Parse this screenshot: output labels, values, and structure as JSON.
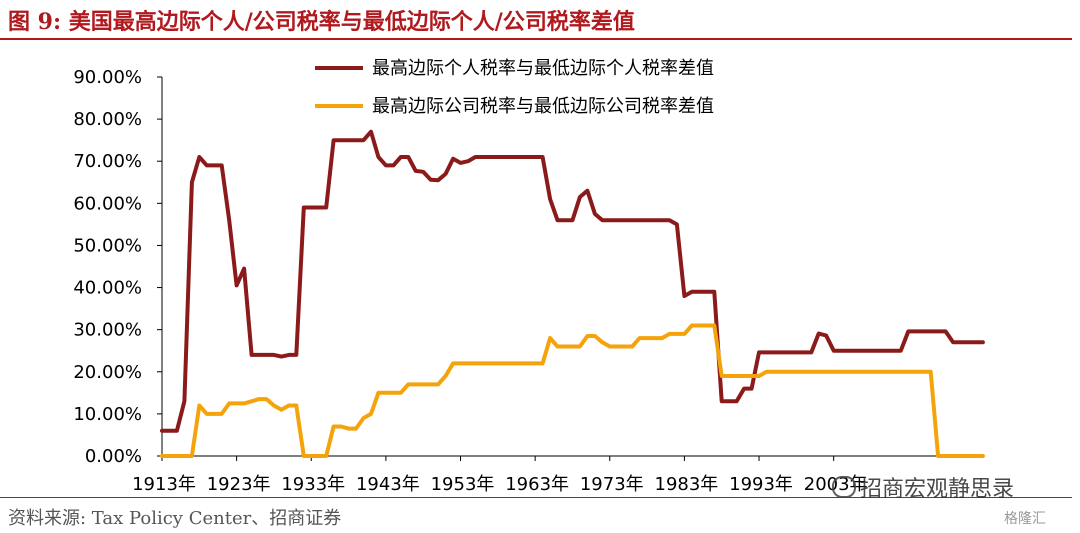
{
  "title": "图 9:  美国最高边际个人/公司税率与最低边际个人/公司税率差值",
  "source": "资料来源:  Tax Policy Center、招商证券",
  "watermark": "招商宏观静思录",
  "corner_logo": "格隆汇",
  "chart_data": {
    "type": "line",
    "title": "",
    "xlabel": "",
    "ylabel": "",
    "ylim": [
      0,
      90
    ],
    "xlim": [
      1913,
      2021
    ],
    "y_ticks": [
      "0.00%",
      "10.00%",
      "20.00%",
      "30.00%",
      "40.00%",
      "50.00%",
      "60.00%",
      "70.00%",
      "80.00%",
      "90.00%"
    ],
    "y_tick_values": [
      0,
      10,
      20,
      30,
      40,
      50,
      60,
      70,
      80,
      90
    ],
    "x_ticks": [
      "1913年",
      "1923年",
      "1933年",
      "1943年",
      "1953年",
      "1963年",
      "1973年",
      "1983年",
      "1993年",
      "2003年"
    ],
    "x_tick_values": [
      1913,
      1923,
      1933,
      1943,
      1953,
      1963,
      1973,
      1983,
      1993,
      2003
    ],
    "grid": false,
    "legend_position": "top-right",
    "series": [
      {
        "name": "最高边际个人税率与最低边际个人税率差值",
        "color": "#8b1a1a",
        "points": [
          [
            1913,
            6
          ],
          [
            1915,
            6
          ],
          [
            1916,
            13
          ],
          [
            1917,
            65
          ],
          [
            1918,
            71
          ],
          [
            1919,
            69
          ],
          [
            1921,
            69
          ],
          [
            1922,
            56
          ],
          [
            1923,
            40.5
          ],
          [
            1924,
            44.5
          ],
          [
            1925,
            24
          ],
          [
            1928,
            24
          ],
          [
            1929,
            23.6
          ],
          [
            1930,
            24
          ],
          [
            1931,
            24
          ],
          [
            1932,
            59
          ],
          [
            1935,
            59
          ],
          [
            1936,
            75
          ],
          [
            1940,
            75
          ],
          [
            1941,
            77
          ],
          [
            1942,
            71
          ],
          [
            1943,
            69
          ],
          [
            1944,
            69
          ],
          [
            1945,
            71
          ],
          [
            1946,
            71
          ],
          [
            1947,
            67.7
          ],
          [
            1948,
            67.5
          ],
          [
            1949,
            65.6
          ],
          [
            1950,
            65.5
          ],
          [
            1951,
            67
          ],
          [
            1952,
            70.6
          ],
          [
            1953,
            69.6
          ],
          [
            1954,
            70
          ],
          [
            1955,
            71
          ],
          [
            1964,
            71
          ],
          [
            1965,
            61
          ],
          [
            1966,
            56
          ],
          [
            1968,
            56
          ],
          [
            1969,
            61.5
          ],
          [
            1970,
            63
          ],
          [
            1971,
            57.5
          ],
          [
            1972,
            56
          ],
          [
            1981,
            56
          ],
          [
            1982,
            55
          ],
          [
            1983,
            38
          ],
          [
            1984,
            39
          ],
          [
            1987,
            39
          ],
          [
            1988,
            13
          ],
          [
            1990,
            13
          ],
          [
            1991,
            16
          ],
          [
            1992,
            16
          ],
          [
            1993,
            24.6
          ],
          [
            2000,
            24.6
          ],
          [
            2001,
            29.1
          ],
          [
            2002,
            28.6
          ],
          [
            2003,
            25
          ],
          [
            2012,
            25
          ],
          [
            2013,
            29.6
          ],
          [
            2018,
            29.6
          ],
          [
            2019,
            27
          ],
          [
            2023,
            27
          ]
        ]
      },
      {
        "name": "最高边际公司税率与最低边际公司税率差值",
        "color": "#f5a30a",
        "points": [
          [
            1913,
            0
          ],
          [
            1917,
            0
          ],
          [
            1918,
            12
          ],
          [
            1919,
            10
          ],
          [
            1921,
            10
          ],
          [
            1922,
            12.5
          ],
          [
            1924,
            12.5
          ],
          [
            1925,
            13
          ],
          [
            1926,
            13.5
          ],
          [
            1927,
            13.5
          ],
          [
            1928,
            12
          ],
          [
            1929,
            11
          ],
          [
            1930,
            12
          ],
          [
            1931,
            12
          ],
          [
            1932,
            0
          ],
          [
            1935,
            0
          ],
          [
            1936,
            7
          ],
          [
            1937,
            7
          ],
          [
            1938,
            6.5
          ],
          [
            1939,
            6.5
          ],
          [
            1940,
            9
          ],
          [
            1941,
            10
          ],
          [
            1942,
            15
          ],
          [
            1945,
            15
          ],
          [
            1946,
            17
          ],
          [
            1950,
            17
          ],
          [
            1951,
            19
          ],
          [
            1952,
            22
          ],
          [
            1964,
            22
          ],
          [
            1965,
            28
          ],
          [
            1966,
            26
          ],
          [
            1969,
            26
          ],
          [
            1970,
            28.5
          ],
          [
            1971,
            28.5
          ],
          [
            1972,
            27
          ],
          [
            1973,
            26
          ],
          [
            1976,
            26
          ],
          [
            1977,
            28
          ],
          [
            1980,
            28
          ],
          [
            1981,
            29
          ],
          [
            1983,
            29
          ],
          [
            1984,
            31
          ],
          [
            1987,
            31
          ],
          [
            1988,
            19
          ],
          [
            1993,
            19
          ],
          [
            1994,
            20
          ],
          [
            2016,
            20
          ],
          [
            2017,
            0
          ],
          [
            2023,
            0
          ]
        ]
      }
    ]
  }
}
